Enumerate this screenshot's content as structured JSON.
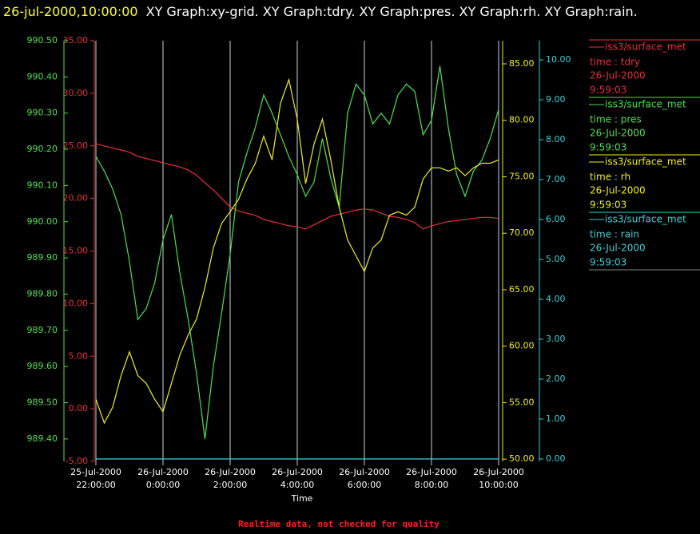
{
  "chart_data": {
    "type": "line",
    "title": "26-jul-2000,10:00:00",
    "subtitle": "XY Graph:xy-grid.  XY Graph:tdry.  XY Graph:pres.  XY Graph:rh.  XY Graph:rain.",
    "x_label": "Time",
    "footer": "Realtime data, not checked for quality",
    "grid": true,
    "xlim": [
      "2000-07-25T22:00",
      "2000-07-26T10:00"
    ],
    "xticks": [
      {
        "value": "2000-07-25T22:00",
        "label": [
          "25-Jul-2000",
          "22:00:00"
        ]
      },
      {
        "value": "2000-07-26T00:00",
        "label": [
          "26-Jul-2000",
          "0:00:00"
        ]
      },
      {
        "value": "2000-07-26T02:00",
        "label": [
          "26-Jul-2000",
          "2:00:00"
        ]
      },
      {
        "value": "2000-07-26T04:00",
        "label": [
          "26-Jul-2000",
          "4:00:00"
        ]
      },
      {
        "value": "2000-07-26T06:00",
        "label": [
          "26-Jul-2000",
          "6:00:00"
        ]
      },
      {
        "value": "2000-07-26T08:00",
        "label": [
          "26-Jul-2000",
          "8:00:00"
        ]
      },
      {
        "value": "2000-07-26T10:00",
        "label": [
          "26-Jul-2000",
          "10:00:00"
        ]
      }
    ],
    "x": [
      "2000-07-25T22:00",
      "2000-07-25T22:15",
      "2000-07-25T22:30",
      "2000-07-25T22:45",
      "2000-07-25T23:00",
      "2000-07-25T23:15",
      "2000-07-25T23:30",
      "2000-07-25T23:45",
      "2000-07-26T00:00",
      "2000-07-26T00:15",
      "2000-07-26T00:30",
      "2000-07-26T00:45",
      "2000-07-26T01:00",
      "2000-07-26T01:15",
      "2000-07-26T01:30",
      "2000-07-26T01:45",
      "2000-07-26T02:00",
      "2000-07-26T02:15",
      "2000-07-26T02:30",
      "2000-07-26T02:45",
      "2000-07-26T03:00",
      "2000-07-26T03:15",
      "2000-07-26T03:30",
      "2000-07-26T03:45",
      "2000-07-26T04:00",
      "2000-07-26T04:15",
      "2000-07-26T04:30",
      "2000-07-26T04:45",
      "2000-07-26T05:00",
      "2000-07-26T05:15",
      "2000-07-26T05:30",
      "2000-07-26T05:45",
      "2000-07-26T06:00",
      "2000-07-26T06:15",
      "2000-07-26T06:30",
      "2000-07-26T06:45",
      "2000-07-26T07:00",
      "2000-07-26T07:15",
      "2000-07-26T07:30",
      "2000-07-26T07:45",
      "2000-07-26T08:00",
      "2000-07-26T08:15",
      "2000-07-26T08:30",
      "2000-07-26T08:45",
      "2000-07-26T09:00",
      "2000-07-26T09:15",
      "2000-07-26T09:30",
      "2000-07-26T09:45",
      "2000-07-26T10:00"
    ],
    "series": [
      {
        "name": "iss3/surface_met",
        "label": "time : tdry",
        "legend_date": "26-Jul-2000",
        "legend_time": "9:59:03",
        "color": "#e8303c",
        "ylim": [
          -5,
          35
        ],
        "yticks": [
          {
            "value": -5,
            "label": "-5.00"
          },
          {
            "value": 0,
            "label": "0.00"
          },
          {
            "value": 5,
            "label": "5.00"
          },
          {
            "value": 10,
            "label": "10.00"
          },
          {
            "value": 15,
            "label": "15.00"
          },
          {
            "value": 20,
            "label": "20.00"
          },
          {
            "value": 25,
            "label": "25.00"
          },
          {
            "value": 30,
            "label": "30.00"
          },
          {
            "value": 35,
            "label": "35.00"
          }
        ],
        "values": [
          25.2,
          25.0,
          24.8,
          24.6,
          24.4,
          24.0,
          23.8,
          23.6,
          23.4,
          23.2,
          23.0,
          22.7,
          22.2,
          21.5,
          20.8,
          20.0,
          19.2,
          18.8,
          18.6,
          18.4,
          18.0,
          17.8,
          17.6,
          17.4,
          17.3,
          17.1,
          17.5,
          17.9,
          18.3,
          18.5,
          18.7,
          18.9,
          19.0,
          18.9,
          18.6,
          18.3,
          18.2,
          18.0,
          17.7,
          17.1,
          17.4,
          17.6,
          17.8,
          17.9,
          18.0,
          18.1,
          18.2,
          18.2,
          18.1
        ]
      },
      {
        "name": "iss3/surface_met",
        "label": "time : pres",
        "legend_date": "26-Jul-2000",
        "legend_time": "9:59:03",
        "color": "#50e050",
        "ylim": [
          989.338,
          990.5
        ],
        "yticks": [
          {
            "value": 989.4,
            "label": "989.40"
          },
          {
            "value": 989.5,
            "label": "989.50"
          },
          {
            "value": 989.6,
            "label": "989.60"
          },
          {
            "value": 989.7,
            "label": "989.70"
          },
          {
            "value": 989.8,
            "label": "989.80"
          },
          {
            "value": 989.9,
            "label": "989.90"
          },
          {
            "value": 990.0,
            "label": "990.00"
          },
          {
            "value": 990.1,
            "label": "990.10"
          },
          {
            "value": 990.2,
            "label": "990.20"
          },
          {
            "value": 990.3,
            "label": "990.30"
          },
          {
            "value": 990.4,
            "label": "990.40"
          },
          {
            "value": 990.5,
            "label": "990.50"
          }
        ],
        "values": [
          990.18,
          990.14,
          990.09,
          990.02,
          989.89,
          989.73,
          989.76,
          989.83,
          989.95,
          990.02,
          989.86,
          989.73,
          989.58,
          989.4,
          989.6,
          989.75,
          989.91,
          990.11,
          990.19,
          990.26,
          990.35,
          990.3,
          990.24,
          990.18,
          990.13,
          990.07,
          990.11,
          990.23,
          990.12,
          990.04,
          990.3,
          990.38,
          990.35,
          990.27,
          990.3,
          990.27,
          990.35,
          990.38,
          990.36,
          990.24,
          990.28,
          990.43,
          990.26,
          990.13,
          990.07,
          990.14,
          990.17,
          990.23,
          990.31
        ]
      },
      {
        "name": "iss3/surface_met",
        "label": "time : rh",
        "legend_date": "26-Jul-2000",
        "legend_time": "9:59:03",
        "color": "#f0f020",
        "ylim": [
          49.8,
          87.05
        ],
        "yticks": [
          {
            "value": 50,
            "label": "50.00"
          },
          {
            "value": 55,
            "label": "55.00"
          },
          {
            "value": 60,
            "label": "60.00"
          },
          {
            "value": 65,
            "label": "65.00"
          },
          {
            "value": 70,
            "label": "70.00"
          },
          {
            "value": 75,
            "label": "75.00"
          },
          {
            "value": 80,
            "label": "80.00"
          },
          {
            "value": 85,
            "label": "85.00"
          }
        ],
        "values": [
          55.3,
          53.2,
          54.6,
          57.4,
          59.5,
          57.4,
          56.7,
          55.3,
          54.2,
          56.7,
          59.2,
          61.0,
          62.4,
          65.2,
          68.7,
          70.9,
          71.9,
          73.0,
          74.8,
          76.2,
          78.6,
          76.5,
          81.5,
          83.6,
          80.1,
          74.4,
          77.9,
          80.1,
          76.5,
          72.3,
          69.4,
          68.0,
          66.6,
          68.7,
          69.4,
          71.6,
          71.9,
          71.6,
          72.3,
          74.8,
          75.8,
          75.8,
          75.5,
          75.8,
          75.1,
          75.8,
          76.2,
          76.2,
          76.5
        ]
      },
      {
        "name": "iss3/surface_met",
        "label": "time : rain",
        "legend_date": "26-Jul-2000",
        "legend_time": "9:59:03",
        "color": "#40d0d8",
        "ylim": [
          -0.06,
          10.48
        ],
        "yticks": [
          {
            "value": 0,
            "label": "0.00"
          },
          {
            "value": 1,
            "label": "1.00"
          },
          {
            "value": 2,
            "label": "2.00"
          },
          {
            "value": 3,
            "label": "3.00"
          },
          {
            "value": 4,
            "label": "4.00"
          },
          {
            "value": 5,
            "label": "5.00"
          },
          {
            "value": 6,
            "label": "6.00"
          },
          {
            "value": 7,
            "label": "7.00"
          },
          {
            "value": 8,
            "label": "8.00"
          },
          {
            "value": 9,
            "label": "9.00"
          },
          {
            "value": 10,
            "label": "10.00"
          }
        ],
        "values": [
          0,
          0,
          0,
          0,
          0,
          0,
          0,
          0,
          0,
          0,
          0,
          0,
          0,
          0,
          0,
          0,
          0,
          0,
          0,
          0,
          0,
          0,
          0,
          0,
          0,
          0,
          0,
          0,
          0,
          0,
          0,
          0,
          0,
          0,
          0,
          0,
          0,
          0,
          0,
          0,
          0,
          0,
          0,
          0,
          0,
          0,
          0,
          0,
          0
        ]
      }
    ]
  }
}
